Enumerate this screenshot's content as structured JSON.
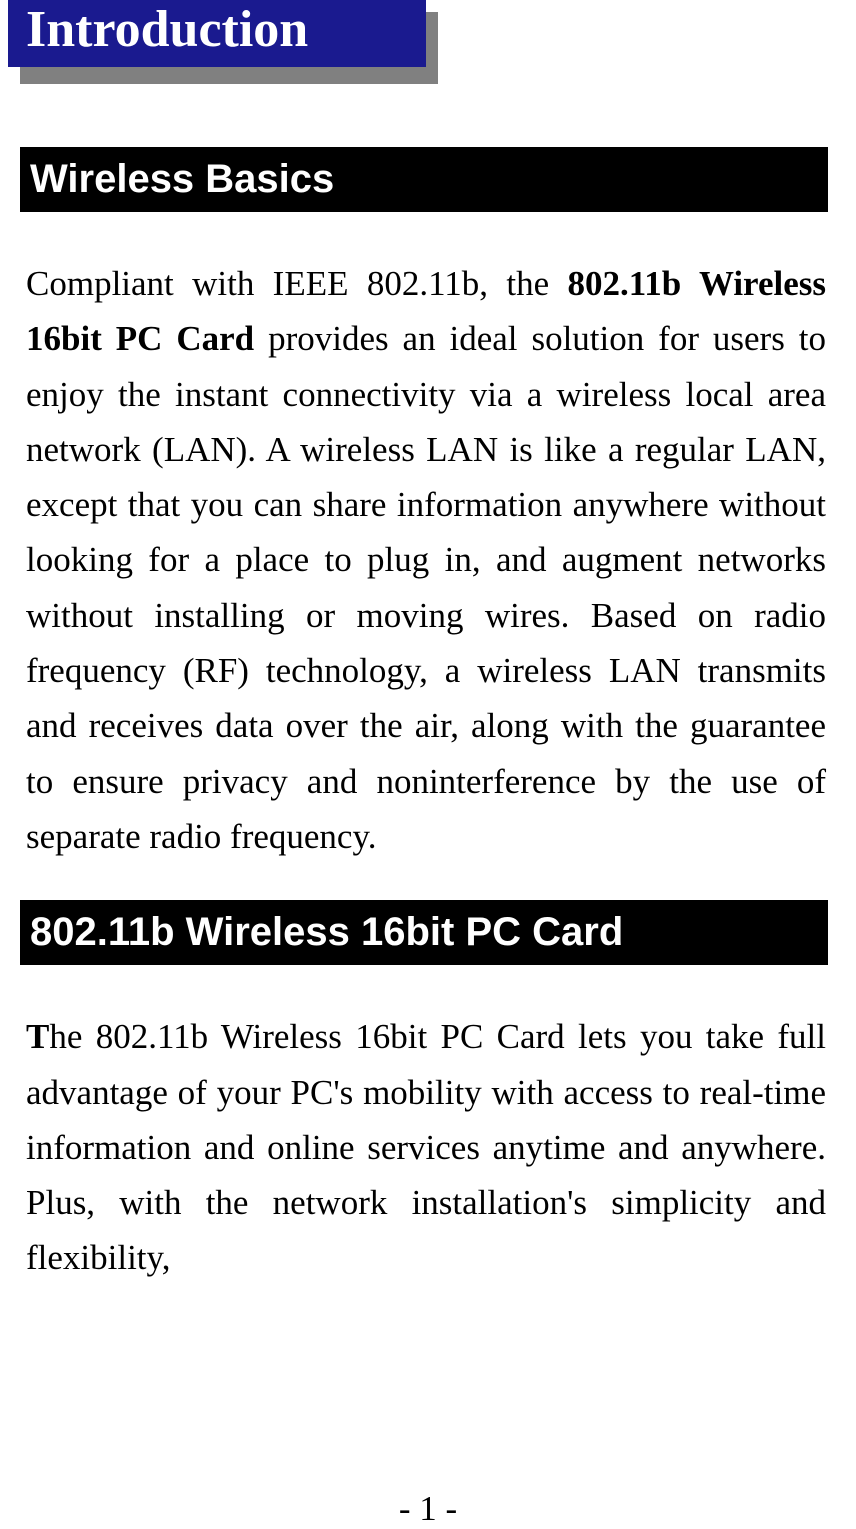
{
  "intro": {
    "title": "Introduction",
    "box_bg_color": "#1a1a8f",
    "box_text_color": "#ffffff",
    "shadow_color": "#808080"
  },
  "section1": {
    "heading": "Wireless Basics",
    "heading_bg": "#000000",
    "heading_color": "#ffffff",
    "body_part1": "Compliant with IEEE 802.11b, the ",
    "body_bold": "802.11b Wireless 16bit PC Card",
    "body_part2": " provides an ideal solution for users to enjoy the instant connectivity via a wireless local area network (LAN).   A wireless LAN is like a regular LAN, except that you can share information anywhere without looking for a place to plug in, and augment networks without installing or moving wires.   Based on radio frequency (RF) technology, a wireless LAN transmits and receives data over the air, along with the guarantee to ensure privacy and noninterference by the use of separate radio frequency."
  },
  "section2": {
    "heading": "802.11b Wireless 16bit PC Card",
    "heading_bg": "#000000",
    "heading_color": "#ffffff",
    "body_bold_t": "T",
    "body_rest": "he 802.11b Wireless 16bit PC Card lets you take full advantage of your PC's mobility with access to real-time information and online services anytime and anywhere.  Plus, with the network installation's simplicity and flexibility,"
  },
  "page_number": "- 1 -",
  "typography": {
    "body_font": "Times New Roman",
    "heading_font": "Arial",
    "body_fontsize": 35,
    "heading_fontsize": 40,
    "intro_fontsize": 52
  },
  "colors": {
    "page_bg": "#ffffff",
    "body_text": "#000000"
  }
}
